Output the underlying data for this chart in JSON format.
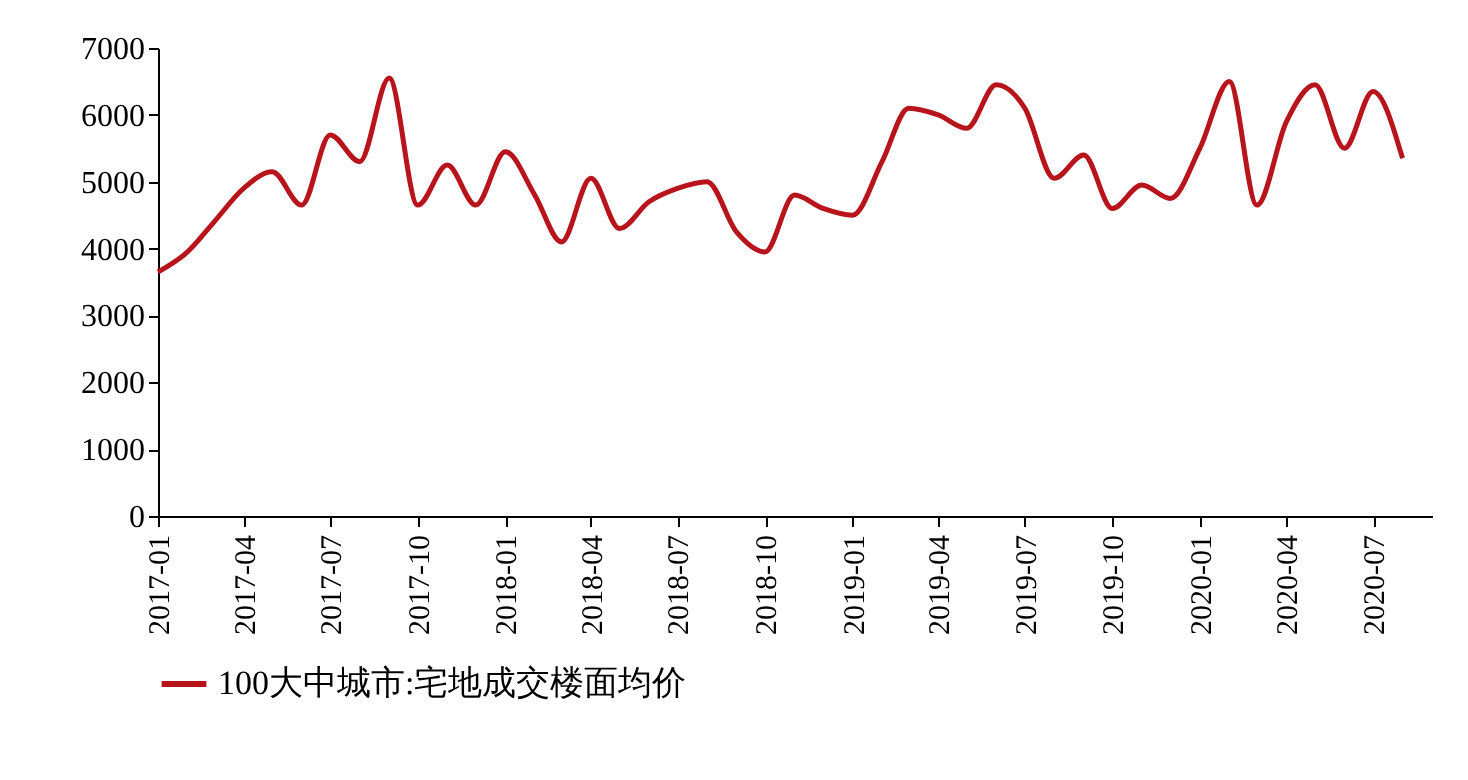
{
  "chart_data": {
    "type": "line",
    "x": [
      "2017-01",
      "2017-02",
      "2017-03",
      "2017-04",
      "2017-05",
      "2017-06",
      "2017-07",
      "2017-08",
      "2017-09",
      "2017-10",
      "2017-11",
      "2017-12",
      "2018-01",
      "2018-02",
      "2018-03",
      "2018-04",
      "2018-05",
      "2018-06",
      "2018-07",
      "2018-08",
      "2018-09",
      "2018-10",
      "2018-11",
      "2018-12",
      "2019-01",
      "2019-02",
      "2019-03",
      "2019-04",
      "2019-05",
      "2019-06",
      "2019-07",
      "2019-08",
      "2019-09",
      "2019-10",
      "2019-11",
      "2019-12",
      "2020-01",
      "2020-02",
      "2020-03",
      "2020-04",
      "2020-05",
      "2020-06",
      "2020-07",
      "2020-08"
    ],
    "series": [
      {
        "name": "100大中城市:宅地成交楼面均价",
        "color": "#b8141c",
        "values": [
          3650,
          3950,
          4400,
          4900,
          5150,
          4650,
          5700,
          5300,
          6550,
          4650,
          5250,
          4650,
          5450,
          4800,
          4100,
          5050,
          4300,
          4700,
          4900,
          5000,
          4250,
          3950,
          4800,
          4600,
          4500,
          5300,
          6100,
          6000,
          5800,
          6450,
          6100,
          5050,
          5400,
          4600,
          4950,
          4750,
          5500,
          6500,
          4650,
          5900,
          6450,
          5500,
          6350,
          5350
        ]
      }
    ],
    "xlim": [
      "2017-01",
      "2020-09"
    ],
    "xticks": [
      "2017-01",
      "2017-04",
      "2017-07",
      "2017-10",
      "2018-01",
      "2018-04",
      "2018-07",
      "2018-10",
      "2019-01",
      "2019-04",
      "2019-07",
      "2019-10",
      "2020-01",
      "2020-04",
      "2020-07"
    ],
    "ylim": [
      0,
      7000
    ],
    "yticks": [
      0,
      1000,
      2000,
      3000,
      4000,
      5000,
      6000,
      7000
    ],
    "grid": false,
    "legend": "bottom",
    "marker": "none",
    "line_style": "solid"
  }
}
